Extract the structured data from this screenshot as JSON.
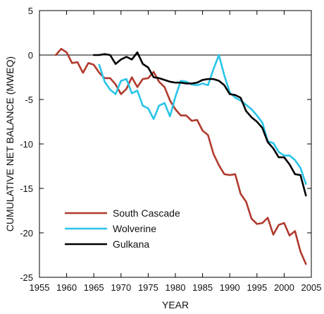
{
  "chart_data": {
    "type": "line",
    "xlabel": "YEAR",
    "ylabel": "CUMULATIVE NET BALANCE (MWEQ)",
    "xlim": [
      1955,
      2005
    ],
    "ylim": [
      -25,
      5
    ],
    "xticks": [
      1955,
      1960,
      1965,
      1970,
      1975,
      1980,
      1985,
      1990,
      1995,
      2000,
      2005
    ],
    "yticks": [
      5,
      0,
      -5,
      -10,
      -15,
      -20,
      -25
    ],
    "zero_line": 0,
    "legend_position": "lower-left",
    "series": [
      {
        "name": "South Cascade",
        "color": "#b03a2e",
        "x": [
          1958,
          1959,
          1960,
          1961,
          1962,
          1963,
          1964,
          1965,
          1966,
          1967,
          1968,
          1969,
          1970,
          1971,
          1972,
          1973,
          1974,
          1975,
          1976,
          1977,
          1978,
          1979,
          1980,
          1981,
          1982,
          1983,
          1984,
          1985,
          1986,
          1987,
          1988,
          1989,
          1990,
          1991,
          1992,
          1993,
          1994,
          1995,
          1996,
          1997,
          1998,
          1999,
          2000,
          2001,
          2002,
          2003,
          2004
        ],
        "y": [
          0.0,
          0.7,
          0.3,
          -0.9,
          -0.8,
          -2.0,
          -0.9,
          -1.1,
          -2.0,
          -2.6,
          -2.6,
          -3.3,
          -4.4,
          -3.8,
          -2.5,
          -3.6,
          -2.7,
          -2.6,
          -1.9,
          -3.0,
          -3.6,
          -5.1,
          -6.1,
          -6.8,
          -6.8,
          -7.4,
          -7.3,
          -8.5,
          -9.0,
          -11.1,
          -12.4,
          -13.4,
          -13.5,
          -13.4,
          -15.6,
          -16.5,
          -18.4,
          -19.0,
          -18.9,
          -18.3,
          -20.2,
          -19.1,
          -18.9,
          -20.3,
          -19.8,
          -22.1,
          -23.5
        ]
      },
      {
        "name": "Wolverine",
        "color": "#29c4e8",
        "x": [
          1966,
          1967,
          1968,
          1969,
          1970,
          1971,
          1972,
          1973,
          1974,
          1975,
          1976,
          1977,
          1978,
          1979,
          1980,
          1981,
          1982,
          1983,
          1984,
          1985,
          1986,
          1987,
          1988,
          1989,
          1990,
          1991,
          1992,
          1993,
          1994,
          1995,
          1996,
          1997,
          1998,
          1999,
          2000,
          2001,
          2002,
          2003,
          2004
        ],
        "y": [
          -1.1,
          -3.0,
          -3.9,
          -4.4,
          -2.9,
          -2.7,
          -4.3,
          -4.0,
          -5.7,
          -6.0,
          -7.2,
          -5.7,
          -5.4,
          -6.9,
          -4.7,
          -2.9,
          -3.0,
          -3.3,
          -3.4,
          -3.2,
          -3.4,
          -1.6,
          0.0,
          -2.3,
          -4.2,
          -4.8,
          -5.1,
          -5.6,
          -6.1,
          -6.8,
          -7.6,
          -9.7,
          -9.9,
          -10.9,
          -11.3,
          -11.3,
          -11.8,
          -12.7,
          -14.5
        ]
      },
      {
        "name": "Gulkana",
        "color": "#000000",
        "x": [
          1965,
          1966,
          1967,
          1968,
          1969,
          1970,
          1971,
          1972,
          1973,
          1974,
          1975,
          1976,
          1977,
          1978,
          1979,
          1980,
          1981,
          1982,
          1983,
          1984,
          1985,
          1986,
          1987,
          1988,
          1989,
          1990,
          1991,
          1992,
          1993,
          1994,
          1995,
          1996,
          1997,
          1998,
          1999,
          2000,
          2001,
          2002,
          2003,
          2004
        ],
        "y": [
          0.0,
          0.0,
          0.1,
          0.0,
          -1.0,
          -0.5,
          -0.2,
          -0.5,
          0.3,
          -1.0,
          -1.4,
          -2.5,
          -2.6,
          -2.8,
          -3.0,
          -3.1,
          -3.1,
          -3.2,
          -3.2,
          -3.1,
          -2.8,
          -2.7,
          -2.7,
          -2.9,
          -3.4,
          -4.4,
          -4.5,
          -4.8,
          -6.3,
          -7.0,
          -7.5,
          -8.2,
          -9.8,
          -10.5,
          -11.5,
          -11.5,
          -12.3,
          -13.4,
          -13.5,
          -15.8
        ]
      }
    ]
  }
}
